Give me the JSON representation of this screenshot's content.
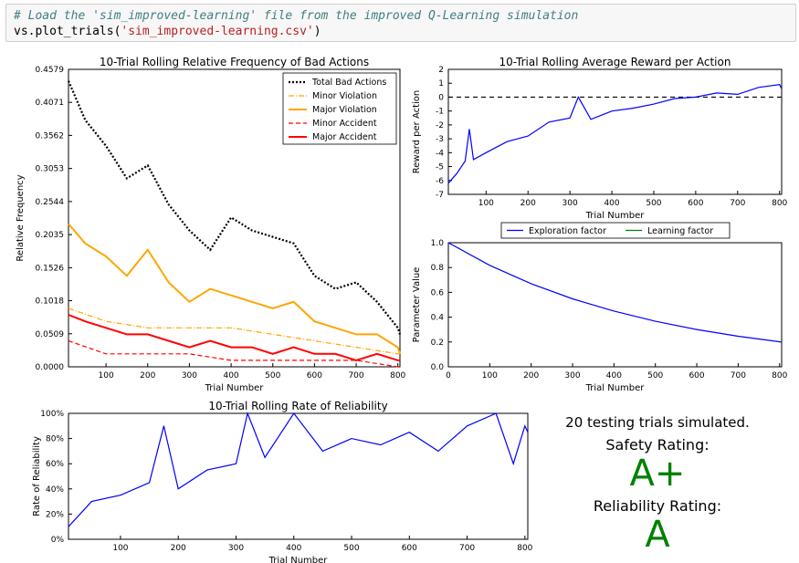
{
  "code": {
    "comment": "# Load the 'sim_improved-learning' file from the improved Q-Learning simulation",
    "call_obj": "vs.plot_trials(",
    "call_arg": "'sim_improved-learning.csv'",
    "call_close": ")"
  },
  "summary": {
    "testing": "20 testing trials simulated.",
    "safety_label": "Safety Rating:",
    "safety_grade": "A+",
    "reliability_label": "Reliability Rating:",
    "reliability_grade": "A",
    "grade_color": "#008000"
  },
  "chart_data": [
    {
      "id": "bad-actions",
      "type": "line",
      "title": "10-Trial Rolling Relative Frequency of Bad Actions",
      "xlabel": "Trial Number",
      "ylabel": "Relative Frequency",
      "xlim": [
        10,
        805
      ],
      "ylim": [
        0,
        0.4579
      ],
      "xticks": [
        100,
        200,
        300,
        400,
        500,
        600,
        700,
        800
      ],
      "yticks": [
        "0.0000",
        "0.0509",
        "0.1018",
        "0.1526",
        "0.2035",
        "0.2544",
        "0.3053",
        "0.3562",
        "0.4071",
        "0.4579"
      ],
      "legend_position": "top-right",
      "series": [
        {
          "name": "Total Bad Actions",
          "color": "#000000",
          "style": "dotted",
          "x": [
            10,
            50,
            100,
            150,
            200,
            250,
            300,
            350,
            400,
            450,
            500,
            550,
            600,
            650,
            700,
            750,
            800,
            805
          ],
          "y": [
            0.44,
            0.38,
            0.34,
            0.29,
            0.31,
            0.25,
            0.21,
            0.18,
            0.23,
            0.21,
            0.2,
            0.19,
            0.14,
            0.12,
            0.13,
            0.1,
            0.06,
            0.05
          ]
        },
        {
          "name": "Minor Violation",
          "color": "#ffa500",
          "style": "dashdot",
          "x": [
            10,
            100,
            200,
            300,
            400,
            500,
            600,
            700,
            800,
            805
          ],
          "y": [
            0.09,
            0.07,
            0.06,
            0.06,
            0.06,
            0.05,
            0.04,
            0.03,
            0.02,
            0.02
          ]
        },
        {
          "name": "Major Violation",
          "color": "#ffa500",
          "style": "solid",
          "x": [
            10,
            50,
            100,
            150,
            200,
            250,
            300,
            350,
            400,
            450,
            500,
            550,
            600,
            650,
            700,
            750,
            800,
            805
          ],
          "y": [
            0.22,
            0.19,
            0.17,
            0.14,
            0.18,
            0.13,
            0.1,
            0.12,
            0.11,
            0.1,
            0.09,
            0.1,
            0.07,
            0.06,
            0.05,
            0.05,
            0.03,
            0.02
          ]
        },
        {
          "name": "Minor Accident",
          "color": "#ff0000",
          "style": "dashed",
          "x": [
            10,
            100,
            200,
            300,
            400,
            500,
            600,
            700,
            800,
            805
          ],
          "y": [
            0.04,
            0.02,
            0.02,
            0.02,
            0.01,
            0.01,
            0.01,
            0.01,
            0.0,
            0.0
          ]
        },
        {
          "name": "Major Accident",
          "color": "#ff0000",
          "style": "solid",
          "x": [
            10,
            50,
            100,
            150,
            200,
            250,
            300,
            350,
            400,
            450,
            500,
            550,
            600,
            650,
            700,
            750,
            800,
            805
          ],
          "y": [
            0.08,
            0.07,
            0.06,
            0.05,
            0.05,
            0.04,
            0.03,
            0.04,
            0.03,
            0.03,
            0.02,
            0.03,
            0.02,
            0.02,
            0.01,
            0.02,
            0.01,
            0.01
          ]
        }
      ]
    },
    {
      "id": "reward",
      "type": "line",
      "title": "10-Trial Rolling Average Reward per Action",
      "xlabel": "Trial Number",
      "ylabel": "Reward per Action",
      "xlim": [
        10,
        805
      ],
      "ylim": [
        -7,
        2
      ],
      "xticks": [
        100,
        200,
        300,
        400,
        500,
        600,
        700,
        800
      ],
      "yticks": [
        -7,
        -6,
        -5,
        -4,
        -3,
        -2,
        -1,
        0,
        1,
        2
      ],
      "series": [
        {
          "name": "",
          "color": "#0000ff",
          "style": "solid",
          "x": [
            10,
            30,
            50,
            60,
            70,
            100,
            150,
            200,
            250,
            300,
            320,
            350,
            400,
            450,
            500,
            550,
            600,
            650,
            700,
            750,
            800,
            805
          ],
          "y": [
            -6.2,
            -5.5,
            -4.6,
            -2.3,
            -4.5,
            -4.0,
            -3.2,
            -2.8,
            -1.8,
            -1.5,
            0.0,
            -1.6,
            -1.0,
            -0.8,
            -0.5,
            -0.1,
            0.0,
            0.3,
            0.2,
            0.7,
            0.9,
            0.6
          ]
        }
      ],
      "reference_line": {
        "y": 0,
        "color": "#000000",
        "style": "dashed"
      }
    },
    {
      "id": "parameters",
      "type": "line",
      "xlabel": "Trial Number",
      "ylabel": "Parameter Value",
      "xlim": [
        0,
        805
      ],
      "ylim": [
        0,
        1.0
      ],
      "xticks": [
        0,
        100,
        200,
        300,
        400,
        500,
        600,
        700,
        800
      ],
      "yticks": [
        "0.0",
        "0.2",
        "0.4",
        "0.6",
        "0.8",
        "1.0"
      ],
      "legend_position": "top",
      "series": [
        {
          "name": "Exploration factor",
          "color": "#0000ff",
          "style": "solid",
          "x": [
            0,
            100,
            200,
            300,
            400,
            500,
            600,
            700,
            805
          ],
          "y": [
            1.0,
            0.818,
            0.67,
            0.548,
            0.449,
            0.367,
            0.301,
            0.246,
            0.199
          ]
        },
        {
          "name": "Learning factor",
          "color": "#008000",
          "style": "solid",
          "x": [],
          "y": []
        }
      ]
    },
    {
      "id": "reliability",
      "type": "line",
      "title": "10-Trial Rolling Rate of Reliability",
      "xlabel": "Trial Number",
      "ylabel": "Rate of Reliability",
      "xlim": [
        10,
        805
      ],
      "ylim": [
        0,
        100
      ],
      "xticks": [
        100,
        200,
        300,
        400,
        500,
        600,
        700,
        800
      ],
      "yticks": [
        "0%",
        "20%",
        "40%",
        "60%",
        "80%",
        "100%"
      ],
      "series": [
        {
          "name": "",
          "color": "#0000ff",
          "style": "solid",
          "x": [
            10,
            50,
            100,
            150,
            175,
            200,
            250,
            300,
            320,
            350,
            400,
            450,
            500,
            550,
            600,
            650,
            700,
            750,
            780,
            800,
            805
          ],
          "y": [
            10,
            30,
            35,
            45,
            90,
            40,
            55,
            60,
            100,
            65,
            100,
            70,
            80,
            75,
            85,
            70,
            90,
            100,
            60,
            90,
            85
          ]
        }
      ]
    }
  ]
}
